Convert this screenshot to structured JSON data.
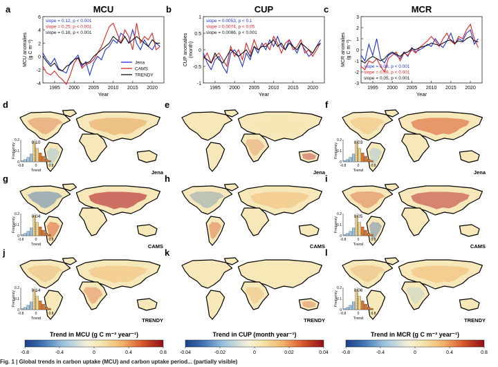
{
  "columns": [
    {
      "id": "MCU",
      "letter": "a",
      "title": "MCU",
      "ylabel": "MCU anomalies\n(g C m⁻²)",
      "ylabel_lines": [
        "MCU anomalies",
        "(g C m⁻²)"
      ],
      "xlabel": "Year",
      "ylim": [
        -4,
        6
      ],
      "yticks": [
        -4,
        -2,
        0,
        2,
        4,
        6
      ],
      "slopes": [
        {
          "text": "slope = 0.12,  p < 0.001",
          "color": "#2233cc"
        },
        {
          "text": "slope = 0.25,  p < 0.001",
          "color": "#dd2222"
        },
        {
          "text": "slope = 0.16,  p < 0.001",
          "color": "#111111"
        }
      ],
      "map_rows": [
        {
          "letter": "d",
          "model": "Jena",
          "hist_value": "0.10"
        },
        {
          "letter": "g",
          "model": "CAMS",
          "hist_value": "0.04"
        },
        {
          "letter": "j",
          "model": "TRENDY",
          "hist_value": "0.14"
        }
      ],
      "colorbar": {
        "title": "Trend in MCU (g C m⁻² year⁻¹)",
        "ticks": [
          "-0.8",
          "-0.4",
          "0",
          "0.4",
          "0.8"
        ]
      }
    },
    {
      "id": "CUP",
      "letter": "b",
      "title": "CUP",
      "ylabel_lines": [
        "CUP anomalies",
        "(month)"
      ],
      "xlabel": "Year",
      "ylim": [
        -1,
        1
      ],
      "yticks": [
        -1,
        -0.5,
        0,
        0.5,
        1
      ],
      "slopes": [
        {
          "text": "slope = 0.0053,  p < 0.1",
          "color": "#2233cc"
        },
        {
          "text": "slope = 0.0074,  p < 0.05",
          "color": "#dd2222"
        },
        {
          "text": "slope = 0.0086,  p < 0.001",
          "color": "#111111"
        }
      ],
      "map_rows": [
        {
          "letter": "e",
          "model": "Jena",
          "hist_value": ""
        },
        {
          "letter": "h",
          "model": "CAMS",
          "hist_value": ""
        },
        {
          "letter": "k",
          "model": "TRENDY",
          "hist_value": ""
        }
      ],
      "colorbar": {
        "title": "Trend in CUP (month year⁻¹)",
        "ticks": [
          "-0.04",
          "-0.02",
          "0",
          "0.02",
          "0.04"
        ]
      }
    },
    {
      "id": "MCR",
      "letter": "c",
      "title": "MCR",
      "ylabel_lines": [
        "MCR anomalies",
        "(g C m⁻²)"
      ],
      "xlabel": "Year",
      "ylim": [
        -3,
        3
      ],
      "yticks": [
        -3,
        -2,
        -1,
        0,
        1,
        2,
        3
      ],
      "slopes": [
        {
          "text": "slope = 0.08,  p < 0.001",
          "color": "#2233cc"
        },
        {
          "text": "slope = 0.09,  p < 0.001",
          "color": "#dd2222"
        },
        {
          "text": "slope = 0.05,  p < 0.001",
          "color": "#111111"
        }
      ],
      "map_rows": [
        {
          "letter": "f",
          "model": "Jena",
          "hist_value": "0.03"
        },
        {
          "letter": "i",
          "model": "CAMS",
          "hist_value": "0.05"
        },
        {
          "letter": "l",
          "model": "TRENDY",
          "hist_value": "0.06"
        }
      ],
      "colorbar": {
        "title": "Trend in MCR (g C m⁻² year⁻¹)",
        "ticks": [
          "-0.8",
          "-0.4",
          "0",
          "0.4",
          "0.8"
        ]
      }
    }
  ],
  "legend": [
    "Jena",
    "CAMS",
    "TRENDY"
  ],
  "hist_labels": {
    "ylabel": "Frequency",
    "xlabel": "Trend",
    "xticks": [
      "-0.8",
      "0",
      "0.8"
    ],
    "yticks": [
      "0.2",
      "0.1",
      "0"
    ]
  },
  "colors": {
    "Jena": "#2233cc",
    "CAMS": "#dd2222",
    "TRENDY": "#111111",
    "land": "#f6e8b8",
    "outline": "#000000"
  },
  "xticks": [
    "1995",
    "2000",
    "2005",
    "2010",
    "2015",
    "2020"
  ],
  "caption": "Fig. 1 | Global trends in carbon uptake (MCU) and carbon uptake period... (partially visible)",
  "chart_data": [
    {
      "type": "line",
      "title": "MCU",
      "xlabel": "Year",
      "ylabel": "MCU anomalies (g C m⁻²)",
      "xlim": [
        1992,
        2023
      ],
      "ylim": [
        -4,
        6
      ],
      "x": [
        1992,
        1993,
        1994,
        1995,
        1996,
        1997,
        1998,
        1999,
        2000,
        2001,
        2002,
        2003,
        2004,
        2005,
        2006,
        2007,
        2008,
        2009,
        2010,
        2011,
        2012,
        2013,
        2014,
        2015,
        2016,
        2017,
        2018,
        2019,
        2020,
        2021,
        2022
      ],
      "series": [
        {
          "name": "Jena",
          "values": [
            0.5,
            -0.5,
            -1.2,
            -0.3,
            -1.8,
            -2.2,
            -2.5,
            -1.0,
            -0.5,
            0.2,
            -1.5,
            -0.8,
            -2.8,
            -1.0,
            0.0,
            -0.5,
            1.0,
            1.5,
            2.5,
            2.0,
            3.5,
            3.0,
            2.0,
            4.0,
            2.0,
            1.0,
            2.5,
            1.5,
            1.0,
            2.0,
            1.5
          ]
        },
        {
          "name": "CAMS",
          "values": [
            -1.5,
            -2.5,
            -2.8,
            -2.2,
            -3.0,
            -3.5,
            -4.2,
            -2.8,
            -1.0,
            -0.2,
            -1.8,
            -1.2,
            -1.0,
            -0.5,
            0.5,
            1.5,
            3.0,
            4.5,
            5.0,
            3.5,
            2.0,
            4.0,
            3.0,
            1.0,
            5.0,
            2.0,
            3.0,
            2.5,
            3.5,
            1.0,
            1.5
          ]
        },
        {
          "name": "TRENDY",
          "values": [
            0.0,
            -0.8,
            -1.5,
            -1.0,
            -2.0,
            -2.2,
            -1.5,
            -1.2,
            -0.5,
            -0.2,
            -1.2,
            -1.0,
            -0.8,
            0.0,
            0.5,
            1.0,
            1.5,
            2.0,
            3.0,
            2.5,
            2.0,
            3.0,
            2.0,
            2.5,
            3.0,
            2.5,
            2.0,
            1.5,
            2.5,
            2.0,
            2.0
          ]
        }
      ]
    },
    {
      "type": "line",
      "title": "CUP",
      "xlabel": "Year",
      "ylabel": "CUP anomalies (month)",
      "xlim": [
        1992,
        2023
      ],
      "ylim": [
        -1,
        1
      ],
      "x": [
        1992,
        1993,
        1994,
        1995,
        1996,
        1997,
        1998,
        1999,
        2000,
        2001,
        2002,
        2003,
        2004,
        2005,
        2006,
        2007,
        2008,
        2009,
        2010,
        2011,
        2012,
        2013,
        2014,
        2015,
        2016,
        2017,
        2018,
        2019,
        2020,
        2021,
        2022
      ],
      "series": [
        {
          "name": "Jena",
          "values": [
            -0.1,
            -0.4,
            -0.6,
            -0.3,
            -0.2,
            -0.5,
            -0.7,
            -0.1,
            0.0,
            -0.2,
            -0.5,
            -0.1,
            -0.3,
            0.1,
            -0.1,
            0.2,
            0.0,
            0.3,
            0.1,
            0.4,
            0.1,
            0.0,
            0.3,
            0.1,
            -0.1,
            0.2,
            0.0,
            -0.2,
            -0.1,
            0.1,
            0.3
          ]
        },
        {
          "name": "CAMS",
          "values": [
            -0.3,
            -0.1,
            -0.4,
            -0.2,
            -0.1,
            -0.3,
            -0.5,
            0.1,
            -0.2,
            0.0,
            -0.3,
            0.2,
            -0.1,
            0.3,
            0.0,
            0.1,
            0.2,
            0.0,
            0.4,
            0.2,
            -0.1,
            0.2,
            0.3,
            0.0,
            0.1,
            0.3,
            -0.1,
            0.0,
            -0.2,
            0.0,
            0.2
          ]
        },
        {
          "name": "TRENDY",
          "values": [
            -0.2,
            -0.3,
            -0.4,
            -0.1,
            -0.3,
            -0.4,
            -0.2,
            0.0,
            -0.1,
            -0.2,
            -0.1,
            0.0,
            -0.2,
            0.1,
            0.0,
            0.1,
            0.1,
            0.2,
            0.3,
            0.1,
            0.2,
            0.0,
            0.2,
            0.1,
            0.0,
            0.2,
            0.1,
            0.0,
            -0.1,
            0.1,
            0.2
          ]
        }
      ]
    },
    {
      "type": "line",
      "title": "MCR",
      "xlabel": "Year",
      "ylabel": "MCR anomalies (g C m⁻²)",
      "xlim": [
        1992,
        2023
      ],
      "ylim": [
        -3,
        3
      ],
      "x": [
        1992,
        1993,
        1994,
        1995,
        1996,
        1997,
        1998,
        1999,
        2000,
        2001,
        2002,
        2003,
        2004,
        2005,
        2006,
        2007,
        2008,
        2009,
        2010,
        2011,
        2012,
        2013,
        2014,
        2015,
        2016,
        2017,
        2018,
        2019,
        2020,
        2021,
        2022
      ],
      "series": [
        {
          "name": "Jena",
          "values": [
            -0.5,
            -1.0,
            0.5,
            -0.5,
            1.0,
            -0.8,
            -1.2,
            -0.5,
            -0.3,
            -0.5,
            -0.8,
            -0.2,
            -0.6,
            0.2,
            -0.2,
            0.0,
            0.2,
            0.5,
            0.3,
            1.0,
            0.5,
            0.2,
            0.8,
            1.5,
            0.5,
            1.0,
            0.8,
            1.5,
            1.8,
            0.5,
            1.0
          ]
        },
        {
          "name": "CAMS",
          "values": [
            -1.5,
            -1.8,
            -1.0,
            -1.2,
            -0.8,
            -1.5,
            -2.0,
            -0.8,
            -0.5,
            -0.2,
            -1.0,
            -0.3,
            -0.5,
            0.0,
            -0.3,
            0.2,
            0.5,
            0.8,
            1.2,
            0.8,
            0.3,
            1.0,
            1.5,
            0.8,
            0.5,
            1.2,
            1.0,
            1.8,
            2.3,
            1.0,
            0.2
          ]
        },
        {
          "name": "TRENDY",
          "values": [
            -1.0,
            -1.2,
            -0.8,
            -0.6,
            -0.8,
            -1.0,
            -0.8,
            -0.4,
            -0.2,
            -0.4,
            -0.6,
            -0.3,
            -0.2,
            0.1,
            0.0,
            0.2,
            0.3,
            0.4,
            0.6,
            0.5,
            0.4,
            0.6,
            0.8,
            0.9,
            0.6,
            0.8,
            0.7,
            1.0,
            1.2,
            0.8,
            0.7
          ]
        }
      ]
    }
  ]
}
